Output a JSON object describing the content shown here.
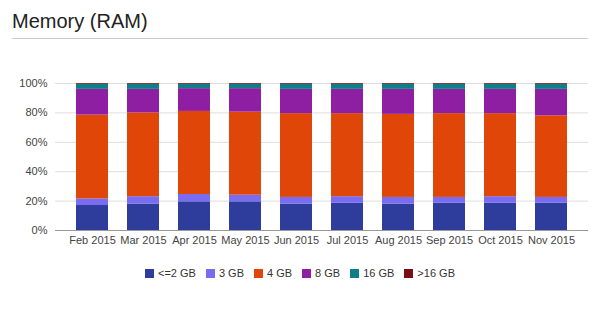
{
  "chart_data": {
    "type": "bar",
    "title": "Memory (RAM)",
    "stacked": true,
    "grid": true,
    "legend": "bottom",
    "categories": [
      "Feb 2015",
      "Mar 2015",
      "Apr 2015",
      "May 2015",
      "Jun 2015",
      "Jul 2015",
      "Aug 2015",
      "Sep 2015",
      "Oct 2015",
      "Nov 2015"
    ],
    "ylim": [
      0,
      100
    ],
    "yticks": [
      {
        "value": 0,
        "label": "0%"
      },
      {
        "value": 20,
        "label": "20%"
      },
      {
        "value": 40,
        "label": "40%"
      },
      {
        "value": 60,
        "label": "60%"
      },
      {
        "value": 80,
        "label": "80%"
      },
      {
        "value": 100,
        "label": "100%"
      }
    ],
    "series": [
      {
        "name": "<=2 GB",
        "color": "#2e3d9c",
        "values": [
          17,
          18,
          19.5,
          19.5,
          18,
          18.5,
          18,
          18.5,
          18.5,
          18.5
        ]
      },
      {
        "name": "3 GB",
        "color": "#7a6cf0",
        "values": [
          4.5,
          5,
          5,
          4.5,
          4.5,
          4.5,
          4.5,
          4,
          4.5,
          4
        ]
      },
      {
        "name": "4 GB",
        "color": "#e04608",
        "values": [
          57,
          57,
          56.5,
          56.5,
          57,
          56.5,
          56.5,
          57,
          56.5,
          55.5
        ]
      },
      {
        "name": "8 GB",
        "color": "#8e1fa3",
        "values": [
          17.5,
          16,
          15.5,
          16,
          16.5,
          16.5,
          17,
          16.5,
          16.5,
          18
        ]
      },
      {
        "name": "16 GB",
        "color": "#0e7f86",
        "values": [
          3.5,
          3.5,
          3,
          3,
          3.5,
          3.5,
          3.5,
          3.5,
          3.5,
          3.5
        ]
      },
      {
        "name": ">16 GB",
        "color": "#7a0e12",
        "values": [
          0.5,
          0.5,
          0.5,
          0.5,
          0.5,
          0.5,
          0.5,
          0.5,
          0.5,
          0.5
        ]
      }
    ]
  }
}
